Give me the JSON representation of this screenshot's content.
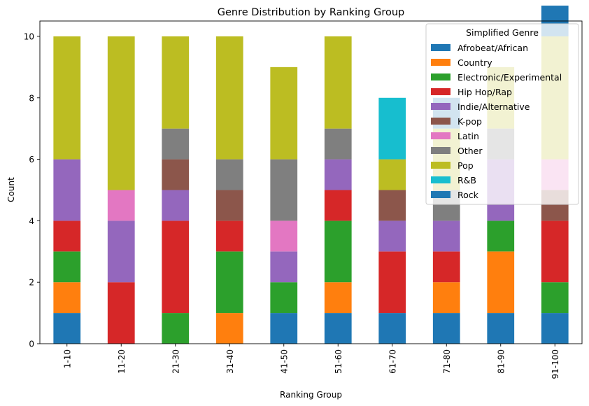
{
  "chart_data": {
    "type": "bar",
    "stacked": true,
    "title": "Genre Distribution by Ranking Group",
    "xlabel": "Ranking Group",
    "ylabel": "Count",
    "ylim": [
      0,
      10.5
    ],
    "yticks": [
      0,
      2,
      4,
      6,
      8,
      10
    ],
    "grid": false,
    "legend": {
      "title": "Simplified Genre",
      "placement": "top-right"
    },
    "categories": [
      "1-10",
      "11-20",
      "21-30",
      "31-40",
      "41-50",
      "51-60",
      "61-70",
      "71-80",
      "81-90",
      "91-100"
    ],
    "series": [
      {
        "name": "Afrobeat/African",
        "color": "#1f77b4",
        "values": [
          1,
          0,
          0,
          0,
          1,
          1,
          1,
          1,
          1,
          1
        ]
      },
      {
        "name": "Country",
        "color": "#ff7f0e",
        "values": [
          1,
          0,
          0,
          1,
          0,
          1,
          0,
          1,
          2,
          0
        ]
      },
      {
        "name": "Electronic/Experimental",
        "color": "#2ca02c",
        "values": [
          1,
          0,
          1,
          2,
          1,
          2,
          0,
          0,
          1,
          1
        ]
      },
      {
        "name": "Hip Hop/Rap",
        "color": "#d62728",
        "values": [
          1,
          2,
          3,
          1,
          0,
          1,
          2,
          1,
          0,
          2
        ]
      },
      {
        "name": "Indie/Alternative",
        "color": "#9467bd",
        "values": [
          2,
          2,
          1,
          0,
          1,
          1,
          1,
          1,
          2,
          0
        ]
      },
      {
        "name": "K-pop",
        "color": "#8c564b",
        "values": [
          0,
          0,
          1,
          1,
          0,
          0,
          1,
          0,
          0,
          1
        ]
      },
      {
        "name": "Latin",
        "color": "#e377c2",
        "values": [
          0,
          1,
          0,
          0,
          1,
          0,
          0,
          0,
          0,
          1
        ]
      },
      {
        "name": "Other",
        "color": "#7f7f7f",
        "values": [
          0,
          0,
          1,
          1,
          2,
          1,
          0,
          1,
          1,
          0
        ]
      },
      {
        "name": "Pop",
        "color": "#bcbd22",
        "values": [
          4,
          5,
          3,
          4,
          3,
          3,
          1,
          2,
          2,
          4
        ]
      },
      {
        "name": "R&B",
        "color": "#17becf",
        "values": [
          0,
          0,
          0,
          0,
          0,
          0,
          2,
          0,
          0,
          0
        ]
      },
      {
        "name": "Rock",
        "color": "#1f77b4",
        "values": [
          0,
          0,
          0,
          0,
          0,
          0,
          0,
          1,
          0,
          1
        ]
      }
    ]
  }
}
